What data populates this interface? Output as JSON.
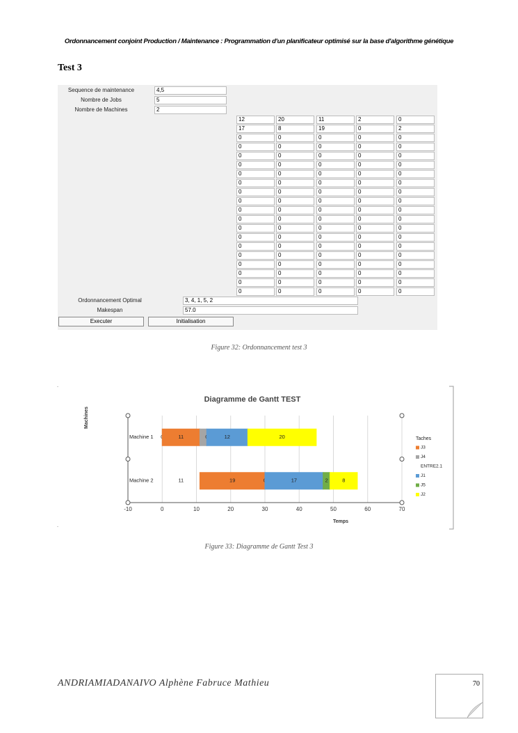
{
  "header": "Ordonnancement conjoint Production / Maintenance : Programmation d'un planificateur optimisé sur la base d'algorithme génétique",
  "section_title": "Test 3",
  "form": {
    "fields": [
      {
        "label": "Sequence de maintenance",
        "value": "4,5"
      },
      {
        "label": "Nombre de Jobs",
        "value": "5"
      },
      {
        "label": "Nombre de Machines",
        "value": "2"
      }
    ],
    "grid": [
      [
        12,
        20,
        11,
        2,
        0
      ],
      [
        17,
        8,
        19,
        0,
        2
      ],
      [
        0,
        0,
        0,
        0,
        0
      ],
      [
        0,
        0,
        0,
        0,
        0
      ],
      [
        0,
        0,
        0,
        0,
        0
      ],
      [
        0,
        0,
        0,
        0,
        0
      ],
      [
        0,
        0,
        0,
        0,
        0
      ],
      [
        0,
        0,
        0,
        0,
        0
      ],
      [
        0,
        0,
        0,
        0,
        0
      ],
      [
        0,
        0,
        0,
        0,
        0
      ],
      [
        0,
        0,
        0,
        0,
        0
      ],
      [
        0,
        0,
        0,
        0,
        0
      ],
      [
        0,
        0,
        0,
        0,
        0
      ],
      [
        0,
        0,
        0,
        0,
        0
      ],
      [
        0,
        0,
        0,
        0,
        0
      ],
      [
        0,
        0,
        0,
        0,
        0
      ],
      [
        0,
        0,
        0,
        0,
        0
      ],
      [
        0,
        0,
        0,
        0,
        0
      ],
      [
        0,
        0,
        0,
        0,
        0
      ],
      [
        0,
        0,
        0,
        0,
        0
      ]
    ],
    "results": [
      {
        "label": "Ordonnancement Optimal",
        "value": "3, 4, 1, 5, 2"
      },
      {
        "label": "Makespan",
        "value": "57.0"
      }
    ],
    "buttons": [
      "Executer",
      "Initialisation"
    ]
  },
  "figure_32_caption": "Figure 32: Ordonnancement test 3",
  "chart_data": {
    "type": "bar",
    "orientation": "horizontal",
    "stacked": true,
    "title": "Diagramme de Gantt TEST",
    "x_label": "Temps",
    "y_label": "Machines",
    "categories": [
      "Machine 1",
      "Machine 2"
    ],
    "series": [
      {
        "color": null,
        "values": [
          0,
          11
        ],
        "value_labels": [
          "0",
          "11"
        ]
      },
      {
        "name": "J3",
        "color": "#ed7d31",
        "values": [
          11,
          19
        ],
        "value_labels": [
          "11",
          "19"
        ]
      },
      {
        "name": "J4",
        "color": "#a5a5a5",
        "values": [
          2,
          0
        ]
      },
      {
        "name": "ENTRE2.1",
        "color": null,
        "values": [
          0,
          0
        ],
        "value_labels": [
          "0",
          "0"
        ]
      },
      {
        "name": "J1",
        "color": "#5b9bd5",
        "values": [
          12,
          17
        ],
        "value_labels": [
          "12",
          "17"
        ]
      },
      {
        "name": "J5",
        "color": "#70ad47",
        "values": [
          0,
          2
        ],
        "value_labels": [
          null,
          "2"
        ]
      },
      {
        "name": "J2",
        "color": "#ffff00",
        "values": [
          20,
          8
        ],
        "value_labels": [
          "20",
          "8"
        ]
      }
    ],
    "xlim": [
      -10,
      70
    ],
    "xticks": [
      -10,
      0,
      10,
      20,
      30,
      40,
      50,
      60,
      70
    ],
    "grid": true,
    "legend": "right",
    "legend_title": "Taches"
  },
  "figure_33_caption": "Figure 33: Diagramme de Gantt Test 3",
  "footer": {
    "author": "ANDRIAMIADANAIVO Alphène Fabruce Mathieu",
    "page": "70"
  }
}
